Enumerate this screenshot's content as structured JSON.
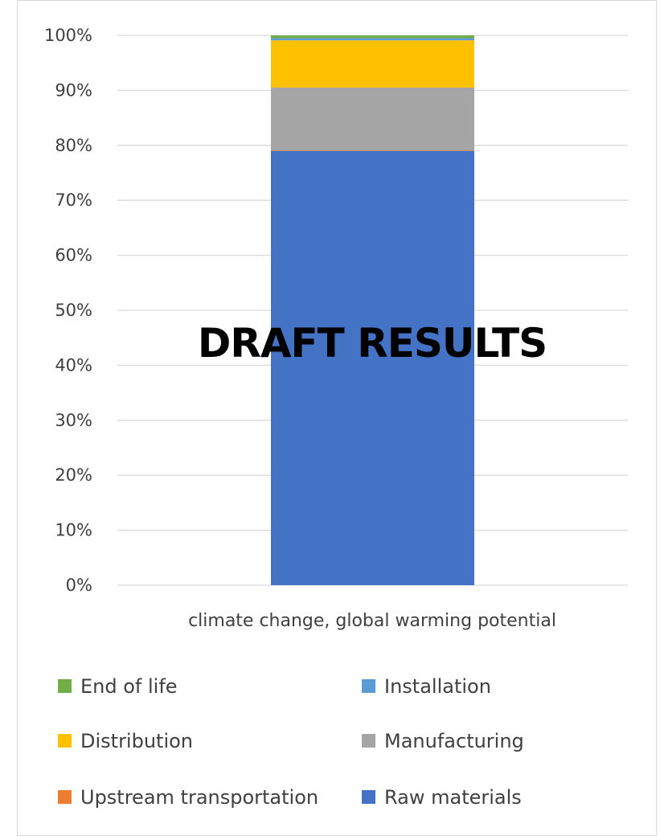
{
  "chart_data": {
    "type": "bar",
    "stacked": true,
    "percent": true,
    "categories": [
      "climate change, global warming potential"
    ],
    "series": [
      {
        "name": "Raw materials",
        "color": "#4472c4",
        "values": [
          79.0
        ]
      },
      {
        "name": "Upstream transportation",
        "color": "#ed7d31",
        "values": [
          0.1
        ]
      },
      {
        "name": "Manufacturing",
        "color": "#a5a5a5",
        "values": [
          11.4
        ]
      },
      {
        "name": "Distribution",
        "color": "#ffc000",
        "values": [
          8.6
        ]
      },
      {
        "name": "Installation",
        "color": "#5b9bd5",
        "values": [
          0.4
        ]
      },
      {
        "name": "End of life",
        "color": "#70ad47",
        "values": [
          0.5
        ]
      }
    ],
    "yticks": [
      "0%",
      "10%",
      "20%",
      "30%",
      "40%",
      "50%",
      "60%",
      "70%",
      "80%",
      "90%",
      "100%"
    ],
    "ylim": [
      0,
      100
    ],
    "grid": true,
    "legend_position": "bottom",
    "legend_order": [
      "End of life",
      "Installation",
      "Distribution",
      "Manufacturing",
      "Upstream transportation",
      "Raw materials"
    ],
    "annotation": "DRAFT RESULTS"
  }
}
